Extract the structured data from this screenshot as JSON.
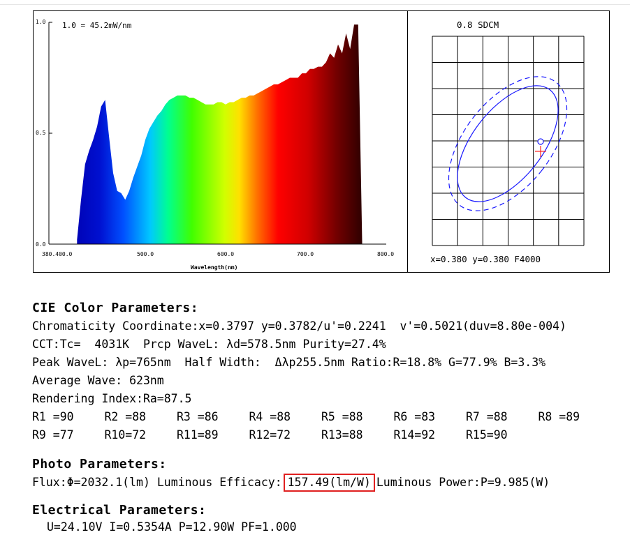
{
  "spectrum": {
    "scale_label": "1.0 = 45.2mW/nm",
    "y_ticks": [
      "1.0",
      "0.5",
      "0.0"
    ],
    "x_ticks": [
      "380.400.0",
      "500.0",
      "600.0",
      "700.0",
      "800.0"
    ],
    "xlabel": "Wavelength(nm)"
  },
  "chart_data": [
    {
      "type": "area",
      "xlabel": "Wavelength(nm)",
      "ylabel": "",
      "xlim": [
        380,
        800
      ],
      "ylim": [
        0,
        1.0
      ],
      "x": [
        415,
        420,
        425,
        430,
        435,
        440,
        445,
        450,
        455,
        460,
        465,
        470,
        475,
        480,
        485,
        490,
        495,
        500,
        505,
        510,
        515,
        520,
        525,
        530,
        535,
        540,
        545,
        550,
        555,
        560,
        565,
        570,
        575,
        580,
        585,
        590,
        595,
        600,
        605,
        610,
        615,
        620,
        625,
        630,
        635,
        640,
        645,
        650,
        655,
        660,
        665,
        670,
        675,
        680,
        685,
        690,
        695,
        700,
        705,
        710,
        715,
        720,
        725,
        730,
        735,
        740,
        745,
        750,
        755,
        760,
        765,
        770
      ],
      "values": [
        0.02,
        0.2,
        0.36,
        0.42,
        0.47,
        0.53,
        0.62,
        0.65,
        0.48,
        0.32,
        0.24,
        0.23,
        0.2,
        0.24,
        0.3,
        0.35,
        0.4,
        0.47,
        0.52,
        0.55,
        0.58,
        0.6,
        0.63,
        0.65,
        0.66,
        0.67,
        0.67,
        0.67,
        0.66,
        0.66,
        0.65,
        0.64,
        0.63,
        0.63,
        0.63,
        0.64,
        0.64,
        0.63,
        0.64,
        0.64,
        0.65,
        0.66,
        0.66,
        0.67,
        0.67,
        0.68,
        0.69,
        0.7,
        0.71,
        0.72,
        0.72,
        0.73,
        0.74,
        0.75,
        0.75,
        0.75,
        0.77,
        0.77,
        0.79,
        0.79,
        0.8,
        0.8,
        0.82,
        0.86,
        0.84,
        0.9,
        0.86,
        0.95,
        0.88,
        0.99,
        0.99,
        0.01
      ]
    },
    {
      "type": "scatter",
      "title": "0.8 SDCM",
      "readout": "x=0.380  y=0.380  F4000",
      "x": [
        0.3797
      ],
      "y": [
        0.3782
      ]
    }
  ],
  "cie": {
    "heading": "CIE Color Parameters:",
    "chromaticity": "Chromaticity Coordinate:x=0.3797 y=0.3782/u'=0.2241  v'=0.5021(duv=8.80e-004)",
    "cct": "CCT:Tc=  4031K  Prcp WaveL: λd=578.5nm Purity=27.4%",
    "peak": "Peak WaveL: λp=765nm  Half Width:  Δλp255.5nm Ratio:R=18.8% G=77.9% B=3.3%",
    "average": "Average Wave: 623nm",
    "rendering": "Rendering Index:Ra=87.5",
    "r_values": [
      "R1 =90",
      "R2 =88",
      "R3 =86",
      "R4 =88",
      "R5 =88",
      "R6 =83",
      "R7 =88",
      "R8 =89",
      "R9 =77",
      "R10=72",
      "R11=89",
      "R12=72",
      "R13=88",
      "R14=92",
      "R15=90"
    ]
  },
  "photo": {
    "heading": "Photo Parameters:",
    "flux": "Flux:Φ=2032.1(lm)",
    "efficacy_label": "Luminous Efficacy:",
    "efficacy_value": "157.49(lm/W)",
    "power": "Luminous Power:P=9.985(W)",
    "highlight_color": "#e02020"
  },
  "electrical": {
    "heading": "Electrical Parameters:",
    "values": "U=24.10V I=0.5354A P=12.90W PF=1.000"
  }
}
